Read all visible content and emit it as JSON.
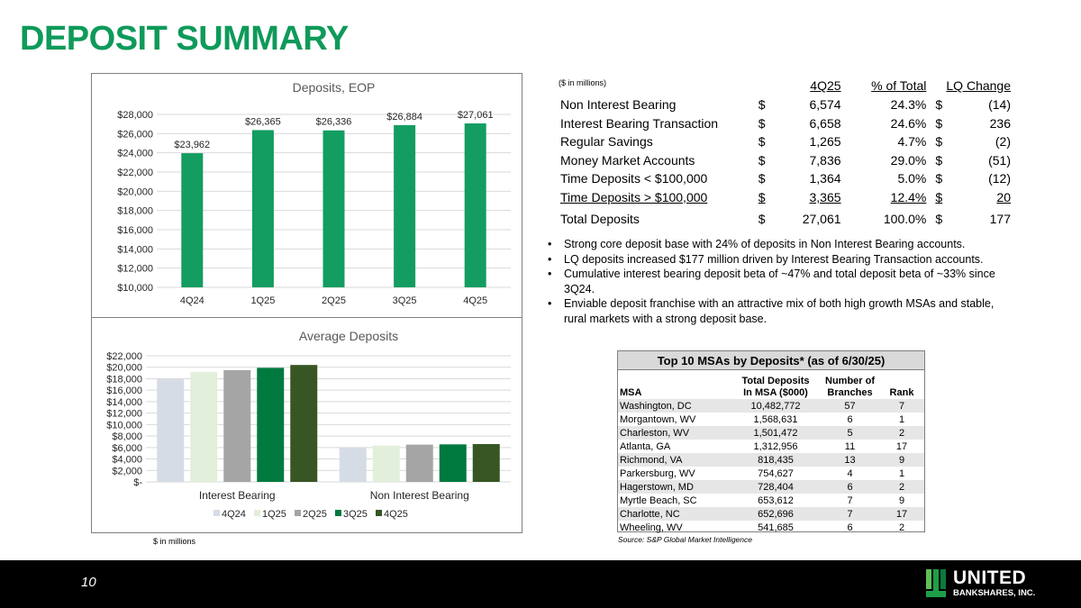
{
  "page": {
    "title": "DEPOSIT SUMMARY",
    "page_number": "10",
    "chart_note": "$ in millions"
  },
  "colors": {
    "accent": "#0f9a5a",
    "bar_green": "#139d61"
  },
  "chart_data": [
    {
      "type": "bar",
      "title": "Deposits, EOP",
      "categories": [
        "4Q24",
        "1Q25",
        "2Q25",
        "3Q25",
        "4Q25"
      ],
      "values": [
        23962,
        26365,
        26336,
        26884,
        27061
      ],
      "data_labels": [
        "$23,962",
        "$26,365",
        "$26,336",
        "$26,884",
        "$27,061"
      ],
      "ylim": [
        10000,
        28000
      ],
      "yticks": [
        "$10,000",
        "$12,000",
        "$14,000",
        "$16,000",
        "$18,000",
        "$20,000",
        "$22,000",
        "$24,000",
        "$26,000",
        "$28,000"
      ],
      "grid": true,
      "xlabel": "",
      "ylabel": ""
    },
    {
      "type": "bar",
      "title": "Average Deposits",
      "categories": [
        "Interest Bearing",
        "Non Interest Bearing"
      ],
      "series": [
        {
          "name": "4Q24",
          "color": "#d6dce5",
          "values": [
            17900,
            6000
          ]
        },
        {
          "name": "1Q25",
          "color": "#e2efda",
          "values": [
            19200,
            6350
          ]
        },
        {
          "name": "2Q25",
          "color": "#a5a5a5",
          "values": [
            19500,
            6500
          ]
        },
        {
          "name": "3Q25",
          "color": "#00793f",
          "values": [
            19900,
            6550
          ]
        },
        {
          "name": "4Q25",
          "color": "#375623",
          "values": [
            20400,
            6600
          ]
        }
      ],
      "ylim": [
        0,
        22000
      ],
      "yticks": [
        "$-",
        "$2,000",
        "$4,000",
        "$6,000",
        "$8,000",
        "$10,000",
        "$12,000",
        "$14,000",
        "$16,000",
        "$18,000",
        "$20,000",
        "$22,000"
      ],
      "legend": "bottom",
      "grid": true,
      "xlabel": "",
      "ylabel": ""
    }
  ],
  "summary": {
    "units": "($ in millions)",
    "headers": {
      "period": "4Q25",
      "pct": "% of Total",
      "change": "LQ Change"
    },
    "rows": [
      {
        "label": "Non Interest Bearing",
        "dollar": "$",
        "value": "6,574",
        "pct": "24.3%",
        "dollar2": "$",
        "change": "(14)"
      },
      {
        "label": "Interest Bearing Transaction",
        "dollar": "$",
        "value": "6,658",
        "pct": "24.6%",
        "dollar2": "$",
        "change": "236"
      },
      {
        "label": "Regular Savings",
        "dollar": "$",
        "value": "1,265",
        "pct": "4.7%",
        "dollar2": "$",
        "change": "(2)"
      },
      {
        "label": "Money Market Accounts",
        "dollar": "$",
        "value": "7,836",
        "pct": "29.0%",
        "dollar2": "$",
        "change": "(51)"
      },
      {
        "label": "Time Deposits < $100,000",
        "dollar": "$",
        "value": "1,364",
        "pct": "5.0%",
        "dollar2": "$",
        "change": "(12)"
      },
      {
        "label": "Time Deposits > $100,000",
        "dollar": "$",
        "value": "3,365",
        "pct": "12.4%",
        "dollar2": "$",
        "change": "20"
      }
    ],
    "total": {
      "label": "Total Deposits",
      "dollar": "$",
      "value": "27,061",
      "pct": "100.0%",
      "dollar2": "$",
      "change": "177"
    }
  },
  "bullets": [
    "Strong core deposit base with 24% of deposits in Non Interest Bearing accounts.",
    "LQ deposits increased $177 million driven by Interest Bearing Transaction accounts.",
    "Cumulative interest bearing deposit beta of ~47% and total deposit beta of ~33% since 3Q24.",
    "Enviable deposit franchise with an attractive mix of both high growth MSAs and stable, rural markets with a strong deposit base."
  ],
  "msa": {
    "title": "Top 10 MSAs by Deposits* (as of 6/30/25)",
    "headers": {
      "msa": "MSA",
      "deposits_1": "Total Deposits",
      "deposits_2": "In MSA ($000)",
      "branches_1": "Number of",
      "branches_2": "Branches",
      "rank": "Rank"
    },
    "rows": [
      {
        "name": "Washington, DC",
        "deposits": "10,482,772",
        "branches": "57",
        "rank": "7"
      },
      {
        "name": "Morgantown, WV",
        "deposits": "1,568,631",
        "branches": "6",
        "rank": "1"
      },
      {
        "name": "Charleston, WV",
        "deposits": "1,501,472",
        "branches": "5",
        "rank": "2"
      },
      {
        "name": "Atlanta, GA",
        "deposits": "1,312,956",
        "branches": "11",
        "rank": "17"
      },
      {
        "name": "Richmond, VA",
        "deposits": "818,435",
        "branches": "13",
        "rank": "9"
      },
      {
        "name": "Parkersburg, WV",
        "deposits": "754,627",
        "branches": "4",
        "rank": "1"
      },
      {
        "name": "Hagerstown, MD",
        "deposits": "728,404",
        "branches": "6",
        "rank": "2"
      },
      {
        "name": "Myrtle Beach, SC",
        "deposits": "653,612",
        "branches": "7",
        "rank": "9"
      },
      {
        "name": "Charlotte, NC",
        "deposits": "652,696",
        "branches": "7",
        "rank": "17"
      },
      {
        "name": "Wheeling, WV",
        "deposits": "541,685",
        "branches": "6",
        "rank": "2"
      }
    ],
    "source": "Source: S&P Global Market Intelligence"
  },
  "logo": {
    "name_1": "UNITED",
    "name_2": "BANKSHARES, INC.",
    "icon": "united-bankshares-logo-icon"
  }
}
